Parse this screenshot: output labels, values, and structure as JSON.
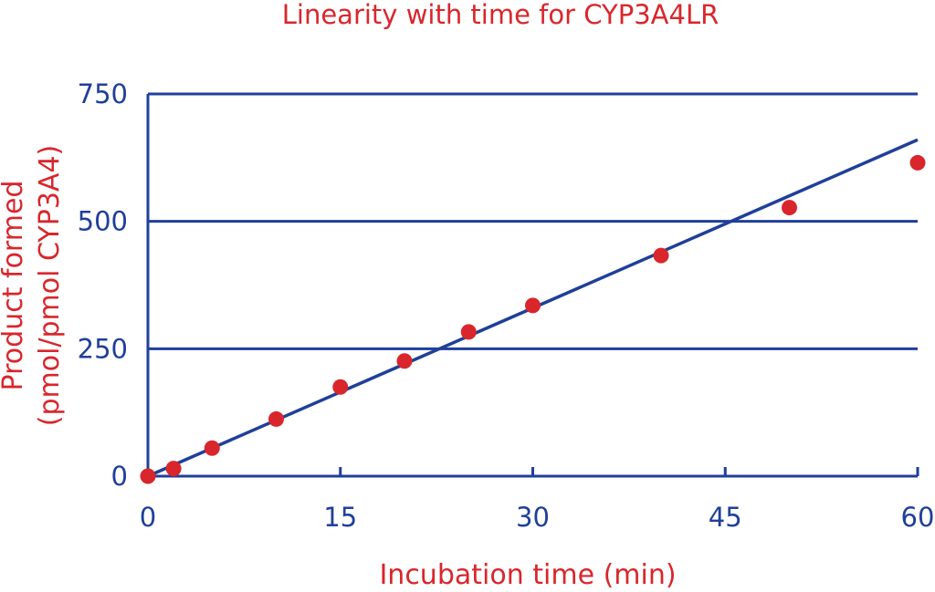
{
  "chart_data": {
    "type": "scatter",
    "title": "Linearity with time for CYP3A4LR",
    "xlabel": "Incubation time (min)",
    "ylabel_line1": "Product formed",
    "ylabel_line2": "(pmol/pmol CYP3A4)",
    "xlim": [
      0,
      60
    ],
    "ylim": [
      0,
      750
    ],
    "xticks": [
      "0",
      "15",
      "30",
      "45",
      "60"
    ],
    "yticks": [
      "0",
      "250",
      "500",
      "750"
    ],
    "grid": true,
    "series": [
      {
        "x": [
          0,
          2,
          5,
          10,
          15,
          20,
          25,
          30,
          40,
          50,
          60
        ],
        "y": [
          0,
          15,
          55,
          112,
          175,
          226,
          283,
          335,
          433,
          527,
          615
        ]
      }
    ],
    "fit_line": {
      "x": [
        0,
        60
      ],
      "y": [
        0,
        660
      ]
    },
    "colors": {
      "points": "#d9262c",
      "axes": "#1f3f9a",
      "text": "#d9262c"
    }
  }
}
